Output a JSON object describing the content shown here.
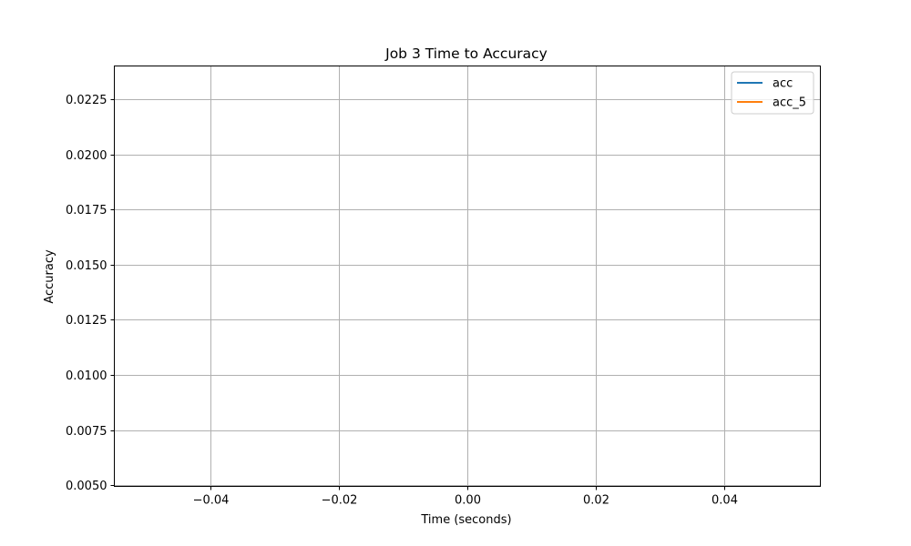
{
  "chart_data": {
    "type": "line",
    "title": "Job 3 Time to Accuracy",
    "xlabel": "Time (seconds)",
    "ylabel": "Accuracy",
    "xlim": [
      -0.055,
      0.055
    ],
    "ylim": [
      0.00495,
      0.024
    ],
    "x_ticks": [
      {
        "value": -0.04,
        "label": "−0.04"
      },
      {
        "value": -0.02,
        "label": "−0.02"
      },
      {
        "value": 0.0,
        "label": "0.00"
      },
      {
        "value": 0.02,
        "label": "0.02"
      },
      {
        "value": 0.04,
        "label": "0.04"
      }
    ],
    "y_ticks": [
      {
        "value": 0.005,
        "label": "0.0050"
      },
      {
        "value": 0.0075,
        "label": "0.0075"
      },
      {
        "value": 0.01,
        "label": "0.0100"
      },
      {
        "value": 0.0125,
        "label": "0.0125"
      },
      {
        "value": 0.015,
        "label": "0.0150"
      },
      {
        "value": 0.0175,
        "label": "0.0175"
      },
      {
        "value": 0.02,
        "label": "0.0200"
      },
      {
        "value": 0.0225,
        "label": "0.0225"
      }
    ],
    "grid": true,
    "legend_position": "top-right",
    "series": [
      {
        "name": "acc",
        "color": "#1f77b4",
        "x": [],
        "y": []
      },
      {
        "name": "acc_5",
        "color": "#ff7f0e",
        "x": [],
        "y": []
      }
    ]
  }
}
